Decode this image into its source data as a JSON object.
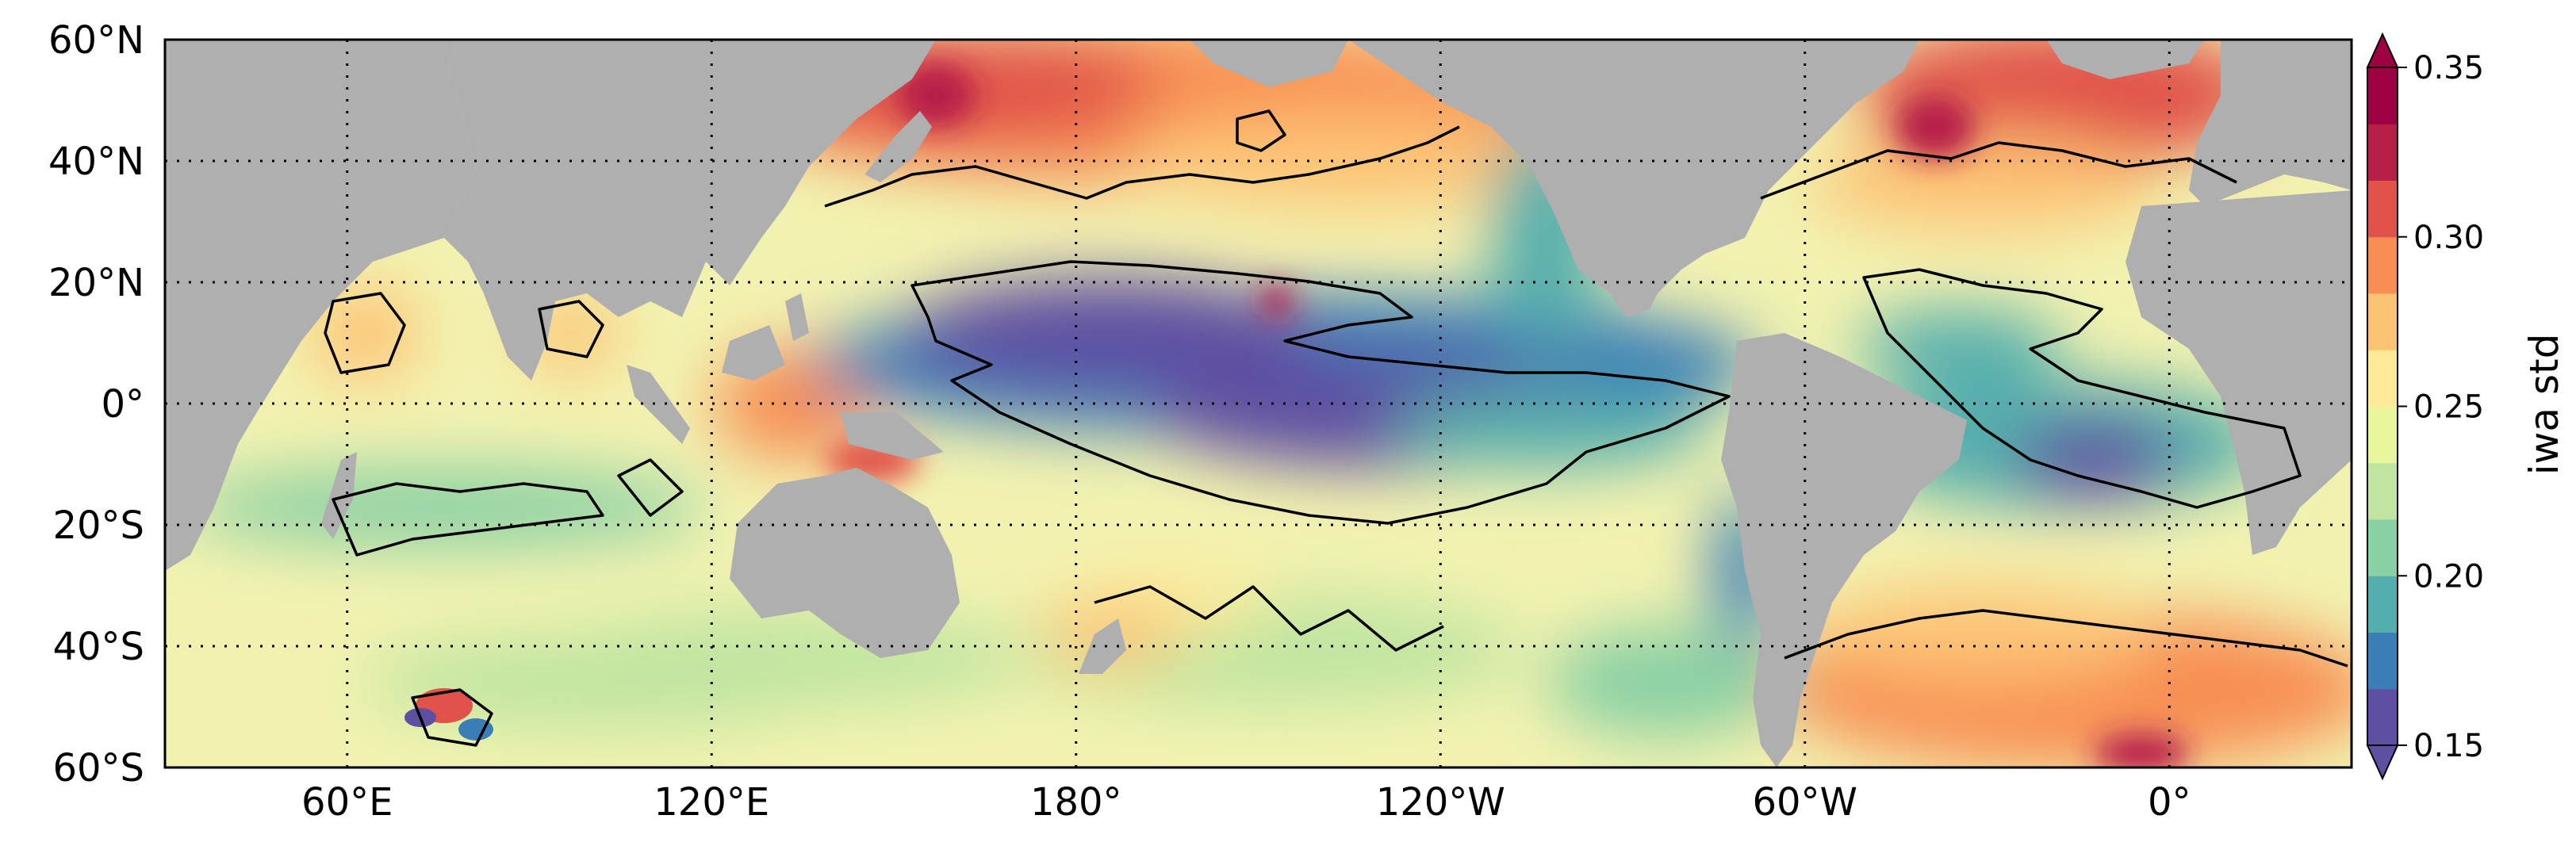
{
  "map": {
    "lon_range": [
      30,
      390
    ],
    "lat_range": [
      -60,
      60
    ],
    "ocean_color": "#f2f2b0",
    "land_color": "#afafaf",
    "grid_style": "dotted",
    "lat_ticks": [
      {
        "lat": 60,
        "label": "60°N"
      },
      {
        "lat": 40,
        "label": "40°N"
      },
      {
        "lat": 20,
        "label": "20°N"
      },
      {
        "lat": 0,
        "label": "0°"
      },
      {
        "lat": -20,
        "label": "20°S"
      },
      {
        "lat": -40,
        "label": "40°S"
      },
      {
        "lat": -60,
        "label": "60°S"
      }
    ],
    "lon_ticks": [
      {
        "lon": 60,
        "label": "60°E"
      },
      {
        "lon": 120,
        "label": "120°E"
      },
      {
        "lon": 180,
        "label": "180°"
      },
      {
        "lon": 240,
        "label": "120°W"
      },
      {
        "lon": 300,
        "label": "60°W"
      },
      {
        "lon": 360,
        "label": "0°"
      }
    ]
  },
  "colorbar": {
    "title": "iwa std",
    "min": 0.15,
    "max": 0.35,
    "extend": "both",
    "ticks": [
      {
        "value": 0.15,
        "label": "0.15"
      },
      {
        "value": 0.2,
        "label": "0.20"
      },
      {
        "value": 0.25,
        "label": "0.25"
      },
      {
        "value": 0.3,
        "label": "0.30"
      },
      {
        "value": 0.35,
        "label": "0.35"
      }
    ],
    "colors": [
      "#5e4fa2",
      "#3a7eb8",
      "#54aead",
      "#89d0a4",
      "#bfe5a0",
      "#eaf69e",
      "#fee999",
      "#fdc374",
      "#f88e53",
      "#e1524a",
      "#b61f48",
      "#9e0142"
    ]
  },
  "features": {
    "regions": [
      {
        "name": "equatorial-pacific-low",
        "lon": 222,
        "lat": 0,
        "value": 0.16
      },
      {
        "name": "central-pacific-low",
        "lon": 190,
        "lat": 8,
        "value": 0.15
      },
      {
        "name": "equatorial-atlantic-low",
        "lon": 340,
        "lat": -8,
        "value": 0.17
      },
      {
        "name": "north-pacific-high",
        "lon": 190,
        "lat": 50,
        "value": 0.3
      },
      {
        "name": "north-atlantic-high",
        "lon": 330,
        "lat": 50,
        "value": 0.32
      },
      {
        "name": "south-atlantic-high",
        "lon": 340,
        "lat": -48,
        "value": 0.3
      },
      {
        "name": "indian-ocean-band",
        "lon": 75,
        "lat": -20,
        "value": 0.21
      },
      {
        "name": "kerguelen-patch",
        "lon": 70,
        "lat": -52,
        "value": 0.31
      }
    ]
  }
}
